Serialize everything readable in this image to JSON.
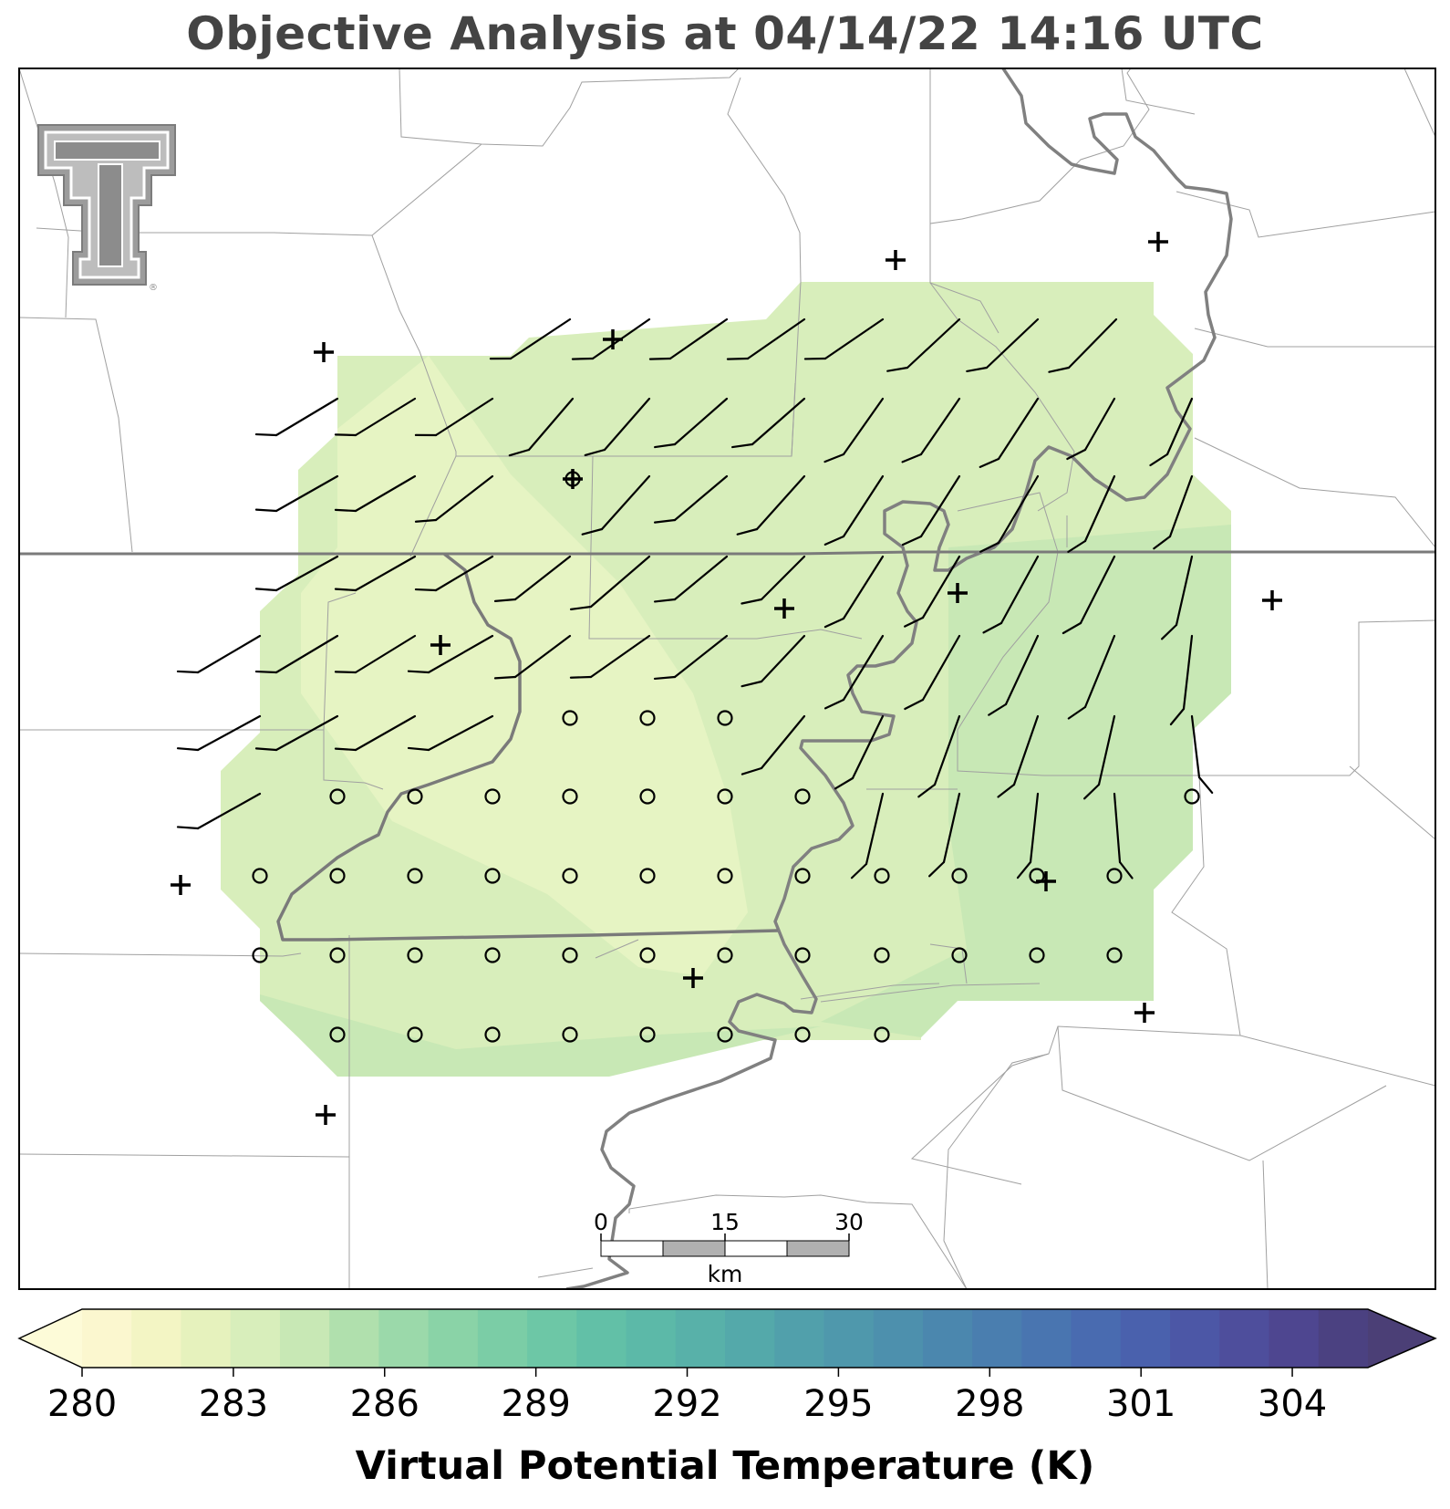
{
  "title": "Objective Analysis at 04/14/22 14:16 UTC",
  "logo_glyph": "T",
  "logo_mark": "®",
  "scalebar": {
    "tick_labels": [
      "0",
      "15",
      "30"
    ],
    "unit": "km"
  },
  "colorbar": {
    "label": "Virtual Potential Temperature (K)",
    "tick_labels": [
      "280",
      "283",
      "286",
      "289",
      "292",
      "295",
      "298",
      "301",
      "304"
    ],
    "min": 280,
    "max": 305.5,
    "step": 1,
    "extend": "both",
    "colormap": "crest",
    "colors": [
      "#fbf7cf",
      "#f3f5c4",
      "#e6f2bd",
      "#d8eebb",
      "#c8e8b5",
      "#b0e0ad",
      "#9bd9aa",
      "#8ad3a7",
      "#7bcda6",
      "#6dc7a6",
      "#62c0a7",
      "#5cb9a8",
      "#58b1a9",
      "#54a9aa",
      "#51a0ab",
      "#4f98ac",
      "#4d90ad",
      "#4b87ae",
      "#4a7eaf",
      "#4975b0",
      "#496bb0",
      "#4a61ad",
      "#4c57a6",
      "#4e4e9c",
      "#4e4690",
      "#4b4181"
    ],
    "under_color": "#fdfbd8",
    "over_color": "#4b3f76"
  },
  "analysis_field": {
    "variable": "Virtual Potential Temperature",
    "unit": "K",
    "approx_range": [
      282,
      285
    ],
    "zones": [
      {
        "name": "coolest band",
        "value": 282.0,
        "color": "#e6f4c3"
      },
      {
        "name": "mid",
        "value": 283.0,
        "color": "#d8eebb"
      },
      {
        "name": "warmer east",
        "value": 284.0,
        "color": "#c8e8b5"
      }
    ]
  },
  "stations": {
    "marker": "+",
    "count": 14
  },
  "wind": {
    "symbol": "barb",
    "calm_symbol": "circle",
    "units": "kt",
    "direction_sectors": [
      "WSW",
      "SW",
      "SSW",
      "S"
    ],
    "calm_region": "south and center"
  },
  "map": {
    "features": [
      "county lines",
      "state line",
      "river"
    ],
    "county_color": "#9a9a9a",
    "state_color": "#7a7a7a",
    "river_color": "#808080"
  }
}
